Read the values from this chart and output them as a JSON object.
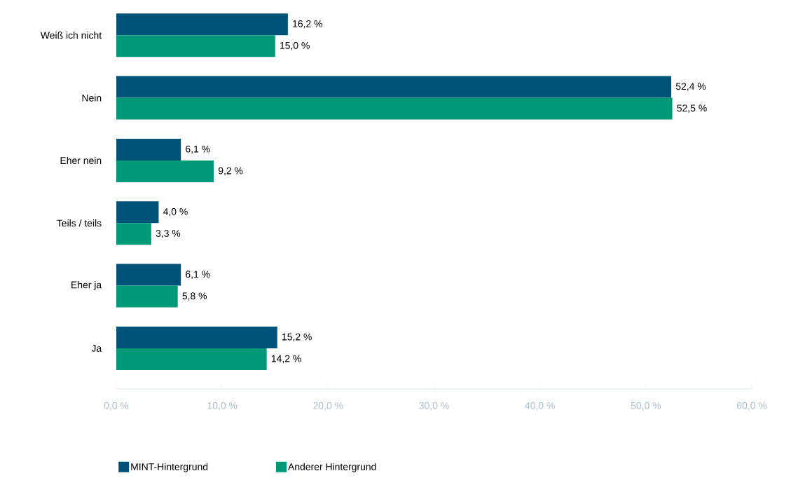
{
  "chart_data": {
    "type": "bar",
    "orientation": "horizontal",
    "categories": [
      "Weiß ich nicht",
      "Nein",
      "Eher nein",
      "Teils / teils",
      "Eher ja",
      "Ja"
    ],
    "series": [
      {
        "name": "MINT-Hintergrund",
        "color": "#005378",
        "values": [
          16.2,
          52.4,
          6.1,
          4.0,
          6.1,
          15.2
        ],
        "value_labels": [
          "16,2 %",
          "52,4 %",
          "6,1 %",
          "4,0 %",
          "6,1 %",
          "15,2 %"
        ]
      },
      {
        "name": "Anderer Hintergrund",
        "color": "#009977",
        "values": [
          15.0,
          52.5,
          9.2,
          3.3,
          5.8,
          14.2
        ],
        "value_labels": [
          "15,0 %",
          "52,5 %",
          "9,2 %",
          "3,3 %",
          "5,8 %",
          "14,2 %"
        ]
      }
    ],
    "xlim": [
      0,
      60
    ],
    "xticks": [
      {
        "value": 0,
        "label": "0,0 %"
      },
      {
        "value": 10,
        "label": "10,0 %"
      },
      {
        "value": 20,
        "label": "20,0 %"
      },
      {
        "value": 30,
        "label": "30,0 %"
      },
      {
        "value": 40,
        "label": "40,0 %"
      },
      {
        "value": 50,
        "label": "50,0 %"
      },
      {
        "value": 60,
        "label": "60,0 %"
      }
    ],
    "legend": "bottom"
  }
}
